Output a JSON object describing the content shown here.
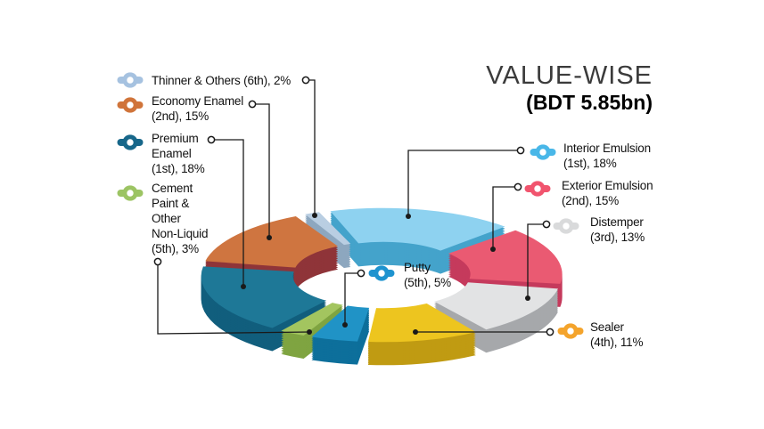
{
  "title": {
    "line1": "VALUE-WISE",
    "line2": "(BDT 5.85bn)"
  },
  "chart_data": {
    "type": "pie",
    "subtype": "3d-exploded-donut",
    "title": "VALUE-WISE",
    "subtitle": "(BDT 5.85bn)",
    "total": "BDT 5.85bn",
    "values_are": "percent share of value",
    "segments": [
      {
        "key": "interior",
        "label": "Interior Emulsion",
        "rank": "1st",
        "value": 18,
        "top_color": "#8ed2f0",
        "side_color": "#44a3cb",
        "icon_color": "#49b7e8"
      },
      {
        "key": "exterior",
        "label": "Exterior Emulsion",
        "rank": "2nd",
        "value": 15,
        "top_color": "#ea5a72",
        "side_color": "#c53a5c",
        "icon_color": "#f1546e"
      },
      {
        "key": "distemper",
        "label": "Distemper",
        "rank": "3rd",
        "value": 13,
        "top_color": "#e2e3e4",
        "side_color": "#a6a8ab",
        "icon_color": "#d9dadb"
      },
      {
        "key": "sealer",
        "label": "Sealer",
        "rank": "4th",
        "value": 11,
        "top_color": "#edc51f",
        "side_color": "#c09b12",
        "icon_color": "#f4a42c"
      },
      {
        "key": "putty",
        "label": "Putty",
        "rank": "5th",
        "value": 5,
        "top_color": "#2093c6",
        "side_color": "#0d6f9b",
        "icon_color": "#1e93cf"
      },
      {
        "key": "cement",
        "label": "Cement Paint & Other Non-Liquid",
        "rank": "5th",
        "value": 3,
        "top_color": "#a3c55f",
        "side_color": "#7fa441",
        "icon_color": "#9cc463"
      },
      {
        "key": "premium",
        "label": "Premium Enamel",
        "rank": "1st",
        "value": 18,
        "top_color": "#1e7897",
        "side_color": "#115e7d",
        "icon_color": "#17678a"
      },
      {
        "key": "economy",
        "label": "Economy Enamel",
        "rank": "2nd",
        "value": 15,
        "top_color": "#cf7540",
        "side_color": "#8f3439",
        "icon_color": "#d0743a"
      },
      {
        "key": "thinner",
        "label": "Thinner & Others",
        "rank": "6th",
        "value": 2,
        "top_color": "#b9cee2",
        "side_color": "#8da7bf",
        "icon_color": "#a6c2e0"
      }
    ]
  },
  "labels": {
    "left": [
      {
        "segment": "thinner",
        "lines": [
          "Thinner & Others (6th), 2%"
        ]
      },
      {
        "segment": "economy",
        "lines": [
          "Economy Enamel",
          "(2nd), 15%"
        ]
      },
      {
        "segment": "premium",
        "lines": [
          "Premium",
          "Enamel",
          "(1st), 18%"
        ]
      },
      {
        "segment": "cement",
        "lines": [
          "Cement",
          "Paint &",
          "Other",
          "Non-Liquid",
          "(5th), 3%"
        ]
      }
    ],
    "right": [
      {
        "segment": "interior",
        "lines": [
          "Interior Emulsion",
          "(1st), 18%"
        ]
      },
      {
        "segment": "exterior",
        "lines": [
          "Exterior Emulsion",
          "(2nd), 15%"
        ]
      },
      {
        "segment": "distemper",
        "lines": [
          "Distemper",
          "(3rd), 13%"
        ]
      },
      {
        "segment": "sealer",
        "lines": [
          "Sealer",
          "(4th), 11%"
        ]
      }
    ],
    "center": {
      "segment": "putty",
      "lines": [
        "Putty",
        "(5th), 5%"
      ]
    }
  }
}
